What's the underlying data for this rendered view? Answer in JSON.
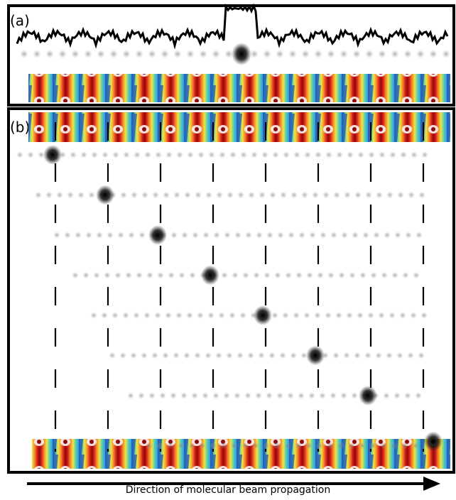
{
  "panels": {
    "a": {
      "label": "(a)"
    },
    "b": {
      "label": "(b)"
    }
  },
  "arrow": {
    "caption": "Direction of molecular beam propagation"
  },
  "field_strip": {
    "description_colors": [
      "#1e3fae",
      "#2f9be0",
      "#59d0b0",
      "#f1e441",
      "#f28d2b",
      "#d81f19",
      "#8c0a0a"
    ]
  },
  "panel_b": {
    "rows": 8,
    "columns": 8
  }
}
